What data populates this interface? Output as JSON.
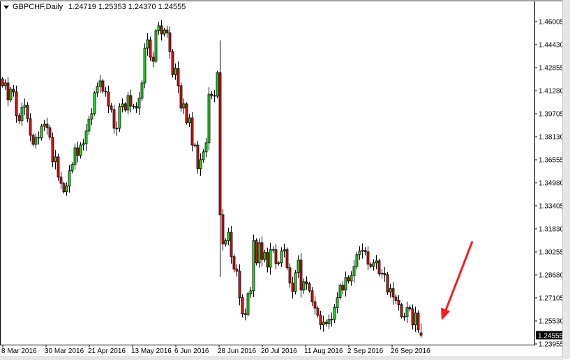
{
  "header": {
    "symbol_timeframe": "GBPCHF,Daily",
    "ohlc": "1.24719 1.25353 1.24370 1.24555"
  },
  "chart_data": {
    "type": "candlestick",
    "symbol": "GBPCHF",
    "timeframe": "Daily",
    "colors": {
      "bull": "#22e022",
      "bear": "#e01010",
      "outline": "#000000",
      "annotation_arrow": "#ff1a1a",
      "price_label_bg": "#000000"
    },
    "price_ticks": [
      "1.46005",
      "1.44430",
      "1.42855",
      "1.41280",
      "1.39705",
      "1.38130",
      "1.36555",
      "1.34980",
      "1.33405",
      "1.31830",
      "1.30255",
      "1.28680",
      "1.27105",
      "1.25530",
      "1.23955"
    ],
    "y_range": [
      1.23955,
      1.46005
    ],
    "date_ticks": [
      "8 Mar 2016",
      "30 Mar 2016",
      "21 Apr 2016",
      "13 May 2016",
      "6 Jun 2016",
      "28 Jun 2016",
      "20 Jul 2016",
      "11 Aug 2016",
      "2 Sep 2016",
      "26 Sep 2016"
    ],
    "current_price": "1.24555",
    "first_open": 1.4209,
    "closes": [
      1.4162,
      1.4181,
      1.4066,
      1.4138,
      1.4119,
      1.3957,
      1.3923,
      1.4014,
      1.4028,
      1.3937,
      1.3823,
      1.3761,
      1.3809,
      1.3804,
      1.3885,
      1.3899,
      1.3875,
      1.3809,
      1.3642,
      1.3675,
      1.3537,
      1.3494,
      1.3437,
      1.3475,
      1.358,
      1.3623,
      1.3737,
      1.3685,
      1.3756,
      1.3766,
      1.3852,
      1.3933,
      1.3971,
      1.4114,
      1.4157,
      1.4195,
      1.4124,
      1.4119,
      1.4023,
      1.3999,
      1.3871,
      1.3871,
      1.4019,
      1.4038,
      1.3995,
      1.4095,
      1.4023,
      1.4019,
      1.4009,
      1.4076,
      1.4181,
      1.4419,
      1.4476,
      1.4357,
      1.4329,
      1.4539,
      1.4572,
      1.4515,
      1.4543,
      1.4524,
      1.4395,
      1.4238,
      1.4281,
      1.4162,
      1.4009,
      1.4038,
      1.3909,
      1.3942,
      1.3756,
      1.3756,
      1.3594,
      1.3656,
      1.3709,
      1.3771,
      1.4104,
      1.4095,
      1.409,
      1.4252,
      1.3279,
      1.3079,
      1.3103,
      1.316,
      1.2993,
      1.2907,
      1.2893,
      1.2712,
      1.2602,
      1.2597,
      1.274,
      1.2759,
      1.3103,
      1.295,
      1.3088,
      1.2974,
      1.3022,
      1.2921,
      1.3041,
      1.3041,
      1.2945,
      1.295,
      1.3031,
      1.3041,
      1.2917,
      1.2812,
      1.2755,
      1.2883,
      1.2969,
      1.2764,
      1.2821,
      1.2807,
      1.2759,
      1.2683,
      1.264,
      1.2592,
      1.2526,
      1.2545,
      1.2535,
      1.2564,
      1.2564,
      1.2645,
      1.2712,
      1.2797,
      1.2764,
      1.285,
      1.2826,
      1.2864,
      1.2926,
      1.3007,
      1.3031,
      1.3036,
      1.3026,
      1.2941,
      1.2926,
      1.295,
      1.2964,
      1.2874,
      1.2879,
      1.2869,
      1.275,
      1.2774,
      1.2716,
      1.2693,
      1.2664,
      1.2583,
      1.2583,
      1.2645,
      1.2635,
      1.2526,
      1.2607,
      1.2492,
      1.24555
    ],
    "extremes": {
      "78": {
        "high": 1.4472,
        "low": 1.2855
      }
    },
    "last_bar": {
      "open": 1.24719,
      "high": 1.25353,
      "low": 1.2437,
      "close": 1.24555
    }
  }
}
